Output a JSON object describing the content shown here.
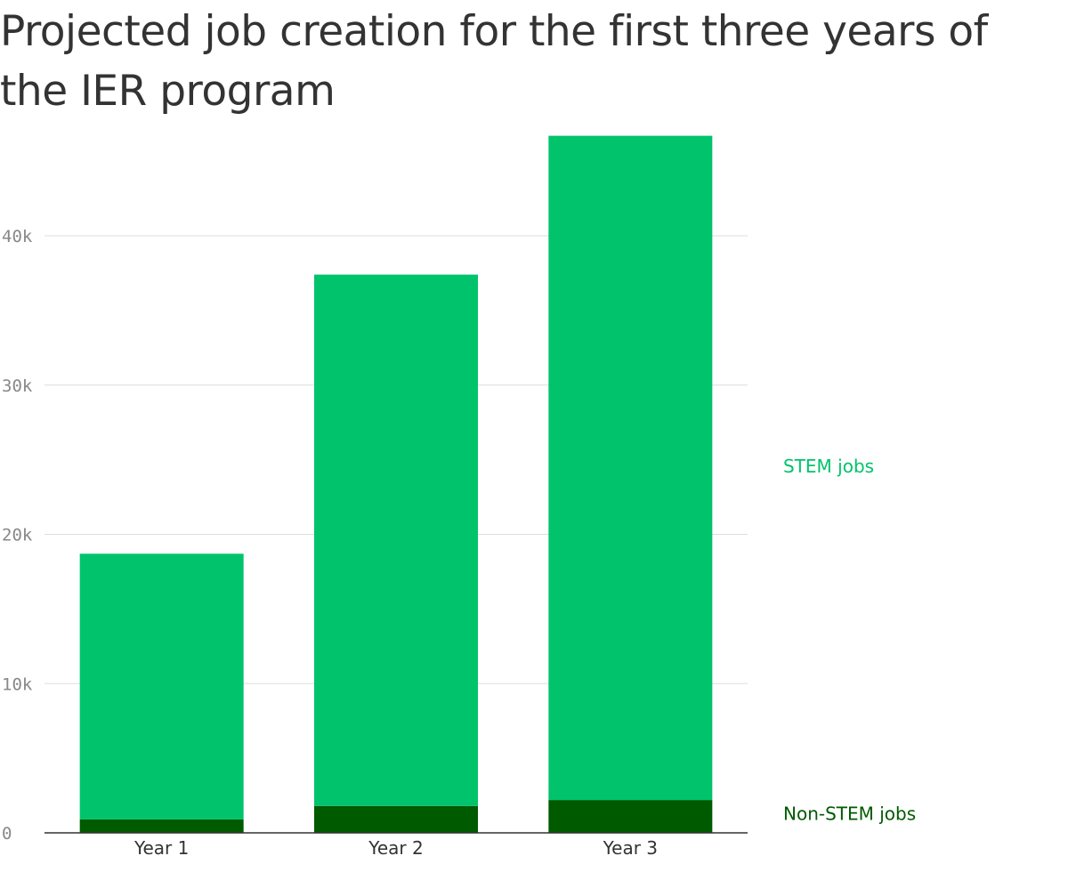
{
  "chart_data": {
    "type": "bar",
    "stacked": true,
    "title": "Projected job creation for the first three years of the IER program",
    "categories": [
      "Year 1",
      "Year 2",
      "Year 3"
    ],
    "series": [
      {
        "name": "Non-STEM jobs",
        "color": "#005a00",
        "values": [
          900,
          1800,
          2200
        ]
      },
      {
        "name": "STEM jobs",
        "color": "#00c36b",
        "values": [
          17800,
          35600,
          44500
        ]
      }
    ],
    "yticks": [
      0,
      10000,
      20000,
      30000,
      40000
    ],
    "ytick_labels": [
      "0",
      "10k",
      "20k",
      "30k",
      "40k"
    ],
    "ylim": [
      0,
      48000
    ],
    "grid": true,
    "legend_placement": "right, next to each series"
  }
}
